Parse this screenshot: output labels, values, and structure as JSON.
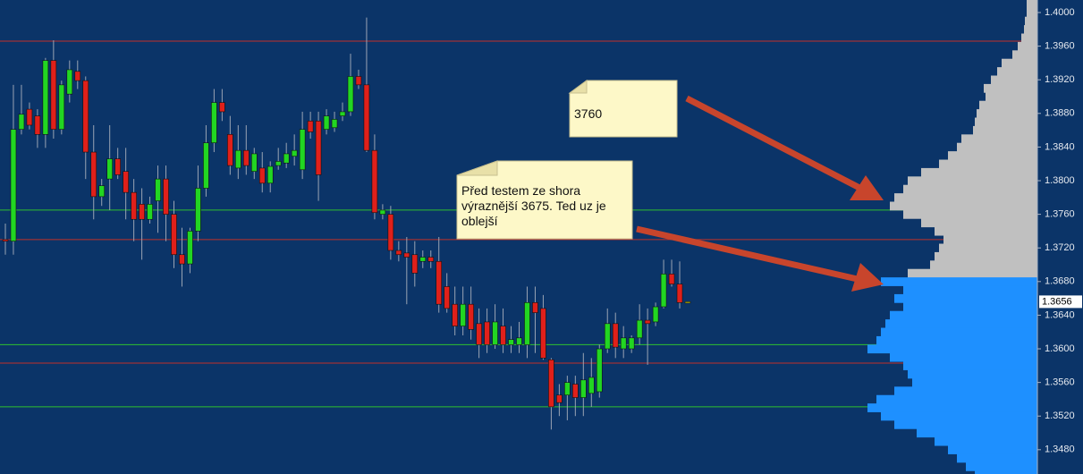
{
  "chart_data": {
    "type": "candlestick",
    "up_color": "#22d622",
    "down_color": "#e0201a",
    "current_color": "#e8e800",
    "wick_color": "#9aa4b4",
    "background": "#0b3468",
    "ylim": [
      1.34511,
      1.40149
    ],
    "yticks": [
      {
        "value": 1.4,
        "label": "1.4000"
      },
      {
        "value": 1.396,
        "label": "1.3960"
      },
      {
        "value": 1.392,
        "label": "1.3920"
      },
      {
        "value": 1.388,
        "label": "1.3880"
      },
      {
        "value": 1.384,
        "label": "1.3840"
      },
      {
        "value": 1.38,
        "label": "1.3800"
      },
      {
        "value": 1.376,
        "label": "1.3760"
      },
      {
        "value": 1.372,
        "label": "1.3720"
      },
      {
        "value": 1.368,
        "label": "1.3680"
      },
      {
        "value": 1.364,
        "label": "1.3640"
      },
      {
        "value": 1.36,
        "label": "1.3600"
      },
      {
        "value": 1.356,
        "label": "1.3560"
      },
      {
        "value": 1.352,
        "label": "1.3520"
      },
      {
        "value": 1.348,
        "label": "1.3480"
      }
    ],
    "last_price": 1.3656,
    "levels": [
      {
        "value": 1.3966,
        "color": "#c0302a"
      },
      {
        "value": 1.3765,
        "color": "#2fbf2f"
      },
      {
        "value": 1.373,
        "color": "#c0302a"
      },
      {
        "value": 1.3605,
        "color": "#2fbf2f"
      },
      {
        "value": 1.3583,
        "color": "#c0302a"
      },
      {
        "value": 1.3531,
        "color": "#2fbf2f"
      }
    ],
    "candles": [
      [
        1.373,
        1.3749,
        1.3712,
        1.3728
      ],
      [
        1.3728,
        1.3914,
        1.3712,
        1.3861
      ],
      [
        1.3861,
        1.3914,
        1.3855,
        1.3879
      ],
      [
        1.3885,
        1.3893,
        1.3861,
        1.3866
      ],
      [
        1.3877,
        1.3885,
        1.3839,
        1.3855
      ],
      [
        1.3855,
        1.3946,
        1.3839,
        1.3943
      ],
      [
        1.3943,
        1.3967,
        1.385,
        1.3861
      ],
      [
        1.3861,
        1.3919,
        1.3855,
        1.3914
      ],
      [
        1.3903,
        1.3943,
        1.3893,
        1.3932
      ],
      [
        1.393,
        1.3943,
        1.3909,
        1.3919
      ],
      [
        1.3919,
        1.3924,
        1.3802,
        1.3834
      ],
      [
        1.3834,
        1.3866,
        1.3754,
        1.3781
      ],
      [
        1.3781,
        1.3802,
        1.377,
        1.3794
      ],
      [
        1.3802,
        1.3866,
        1.3765,
        1.3826
      ],
      [
        1.3826,
        1.3839,
        1.3802,
        1.3807
      ],
      [
        1.3811,
        1.3839,
        1.3754,
        1.3786
      ],
      [
        1.3786,
        1.3802,
        1.3728,
        1.3754
      ],
      [
        1.3772,
        1.3791,
        1.3706,
        1.3754
      ],
      [
        1.3754,
        1.3781,
        1.3749,
        1.3772
      ],
      [
        1.3776,
        1.3818,
        1.3738,
        1.3802
      ],
      [
        1.3802,
        1.3818,
        1.3728,
        1.376
      ],
      [
        1.376,
        1.3776,
        1.3696,
        1.3712
      ],
      [
        1.3712,
        1.3744,
        1.3674,
        1.3701
      ],
      [
        1.3701,
        1.3744,
        1.369,
        1.374
      ],
      [
        1.374,
        1.3818,
        1.3728,
        1.3791
      ],
      [
        1.3791,
        1.3866,
        1.3781,
        1.3845
      ],
      [
        1.3845,
        1.3909,
        1.3834,
        1.3893
      ],
      [
        1.3893,
        1.3909,
        1.3871,
        1.3882
      ],
      [
        1.3855,
        1.3877,
        1.3807,
        1.3818
      ],
      [
        1.3815,
        1.3866,
        1.3802,
        1.3836
      ],
      [
        1.3836,
        1.3866,
        1.3807,
        1.3818
      ],
      [
        1.3811,
        1.3839,
        1.3802,
        1.3832
      ],
      [
        1.3815,
        1.3834,
        1.3786,
        1.3797
      ],
      [
        1.3797,
        1.3823,
        1.3786,
        1.3817
      ],
      [
        1.3818,
        1.3839,
        1.3813,
        1.3823
      ],
      [
        1.3821,
        1.3845,
        1.3815,
        1.3832
      ],
      [
        1.3829,
        1.3855,
        1.3818,
        1.3836
      ],
      [
        1.3813,
        1.3882,
        1.3802,
        1.3861
      ],
      [
        1.3871,
        1.3882,
        1.385,
        1.3858
      ],
      [
        1.3871,
        1.3882,
        1.3776,
        1.3807
      ],
      [
        1.3861,
        1.3885,
        1.3855,
        1.3877
      ],
      [
        1.3863,
        1.3882,
        1.3858,
        1.3873
      ],
      [
        1.3877,
        1.3893,
        1.3871,
        1.3882
      ],
      [
        1.3882,
        1.3951,
        1.3877,
        1.3924
      ],
      [
        1.3924,
        1.3932,
        1.3909,
        1.3914
      ],
      [
        1.3914,
        1.3994,
        1.3834,
        1.3836
      ],
      [
        1.3836,
        1.3855,
        1.3754,
        1.3762
      ],
      [
        1.376,
        1.3772,
        1.3754,
        1.3765
      ],
      [
        1.376,
        1.377,
        1.3706,
        1.3717
      ],
      [
        1.3717,
        1.3728,
        1.3704,
        1.3712
      ],
      [
        1.3714,
        1.3733,
        1.3653,
        1.3709
      ],
      [
        1.3712,
        1.3728,
        1.3674,
        1.369
      ],
      [
        1.3704,
        1.3717,
        1.3696,
        1.3709
      ],
      [
        1.3709,
        1.3717,
        1.3696,
        1.3704
      ],
      [
        1.3704,
        1.3733,
        1.3643,
        1.3653
      ],
      [
        1.3674,
        1.369,
        1.3643,
        1.3648
      ],
      [
        1.3653,
        1.3674,
        1.3616,
        1.3627
      ],
      [
        1.3627,
        1.3674,
        1.3616,
        1.3653
      ],
      [
        1.3653,
        1.3674,
        1.3611,
        1.3623
      ],
      [
        1.363,
        1.3648,
        1.3589,
        1.3605
      ],
      [
        1.3632,
        1.3648,
        1.3595,
        1.3605
      ],
      [
        1.3605,
        1.3653,
        1.36,
        1.3632
      ],
      [
        1.3627,
        1.3648,
        1.3595,
        1.3605
      ],
      [
        1.3605,
        1.3627,
        1.3595,
        1.3611
      ],
      [
        1.3605,
        1.3632,
        1.3595,
        1.3613
      ],
      [
        1.3605,
        1.3674,
        1.3589,
        1.3655
      ],
      [
        1.3655,
        1.3674,
        1.3595,
        1.3643
      ],
      [
        1.3648,
        1.3664,
        1.3587,
        1.3589
      ],
      [
        1.3587,
        1.3589,
        1.3504,
        1.3531
      ],
      [
        1.3545,
        1.3558,
        1.352,
        1.3536
      ],
      [
        1.3545,
        1.3568,
        1.3515,
        1.356
      ],
      [
        1.3558,
        1.3568,
        1.352,
        1.3542
      ],
      [
        1.3542,
        1.3595,
        1.352,
        1.3563
      ],
      [
        1.3547,
        1.3589,
        1.3531,
        1.3566
      ],
      [
        1.3549,
        1.3605,
        1.3542,
        1.36
      ],
      [
        1.36,
        1.3648,
        1.3595,
        1.363
      ],
      [
        1.363,
        1.3643,
        1.3589,
        1.3602
      ],
      [
        1.36,
        1.3627,
        1.3589,
        1.3613
      ],
      [
        1.36,
        1.3616,
        1.3595,
        1.3613
      ],
      [
        1.3613,
        1.3653,
        1.3605,
        1.3634
      ],
      [
        1.3634,
        1.3648,
        1.3581,
        1.363
      ],
      [
        1.3632,
        1.3655,
        1.3627,
        1.365
      ],
      [
        1.365,
        1.3706,
        1.3648,
        1.3689
      ],
      [
        1.3689,
        1.3706,
        1.3674,
        1.3677
      ],
      [
        1.3677,
        1.3704,
        1.3648,
        1.3655
      ],
      [
        1.3656,
        1.3656,
        1.3656,
        1.3656
      ]
    ],
    "profile": [
      {
        "color": "#c0c0c0",
        "prices": [
          1.401,
          1.4,
          1.399,
          1.398,
          1.397,
          1.396,
          1.395,
          1.394,
          1.393,
          1.392,
          1.391,
          1.39,
          1.389,
          1.388,
          1.387,
          1.386,
          1.385,
          1.384,
          1.383,
          1.382,
          1.381,
          1.38,
          1.379,
          1.378,
          1.377,
          1.376,
          1.375,
          1.374,
          1.373,
          1.372,
          1.371,
          1.37,
          1.369
        ],
        "volumes": [
          12,
          12,
          14,
          15,
          18,
          22,
          28,
          40,
          45,
          52,
          60,
          58,
          65,
          68,
          70,
          72,
          85,
          90,
          100,
          110,
          130,
          145,
          150,
          160,
          165,
          150,
          130,
          115,
          105,
          110,
          115,
          120,
          145
        ]
      },
      {
        "color": "#1e90ff",
        "prices": [
          1.368,
          1.367,
          1.366,
          1.365,
          1.364,
          1.363,
          1.362,
          1.361,
          1.36,
          1.359,
          1.358,
          1.357,
          1.356,
          1.355,
          1.354,
          1.353,
          1.352,
          1.351,
          1.35,
          1.349,
          1.348,
          1.347,
          1.346,
          1.345
        ],
        "volumes": [
          175,
          150,
          160,
          150,
          165,
          170,
          175,
          180,
          190,
          165,
          150,
          145,
          140,
          160,
          180,
          190,
          175,
          160,
          135,
          115,
          100,
          90,
          80,
          70
        ]
      }
    ],
    "annotations": [
      {
        "lines": [
          "3760"
        ]
      },
      {
        "lines": [
          "Před testem ze shora",
          "výraznější 3675. Ted uz je",
          "oblejší"
        ]
      }
    ]
  }
}
